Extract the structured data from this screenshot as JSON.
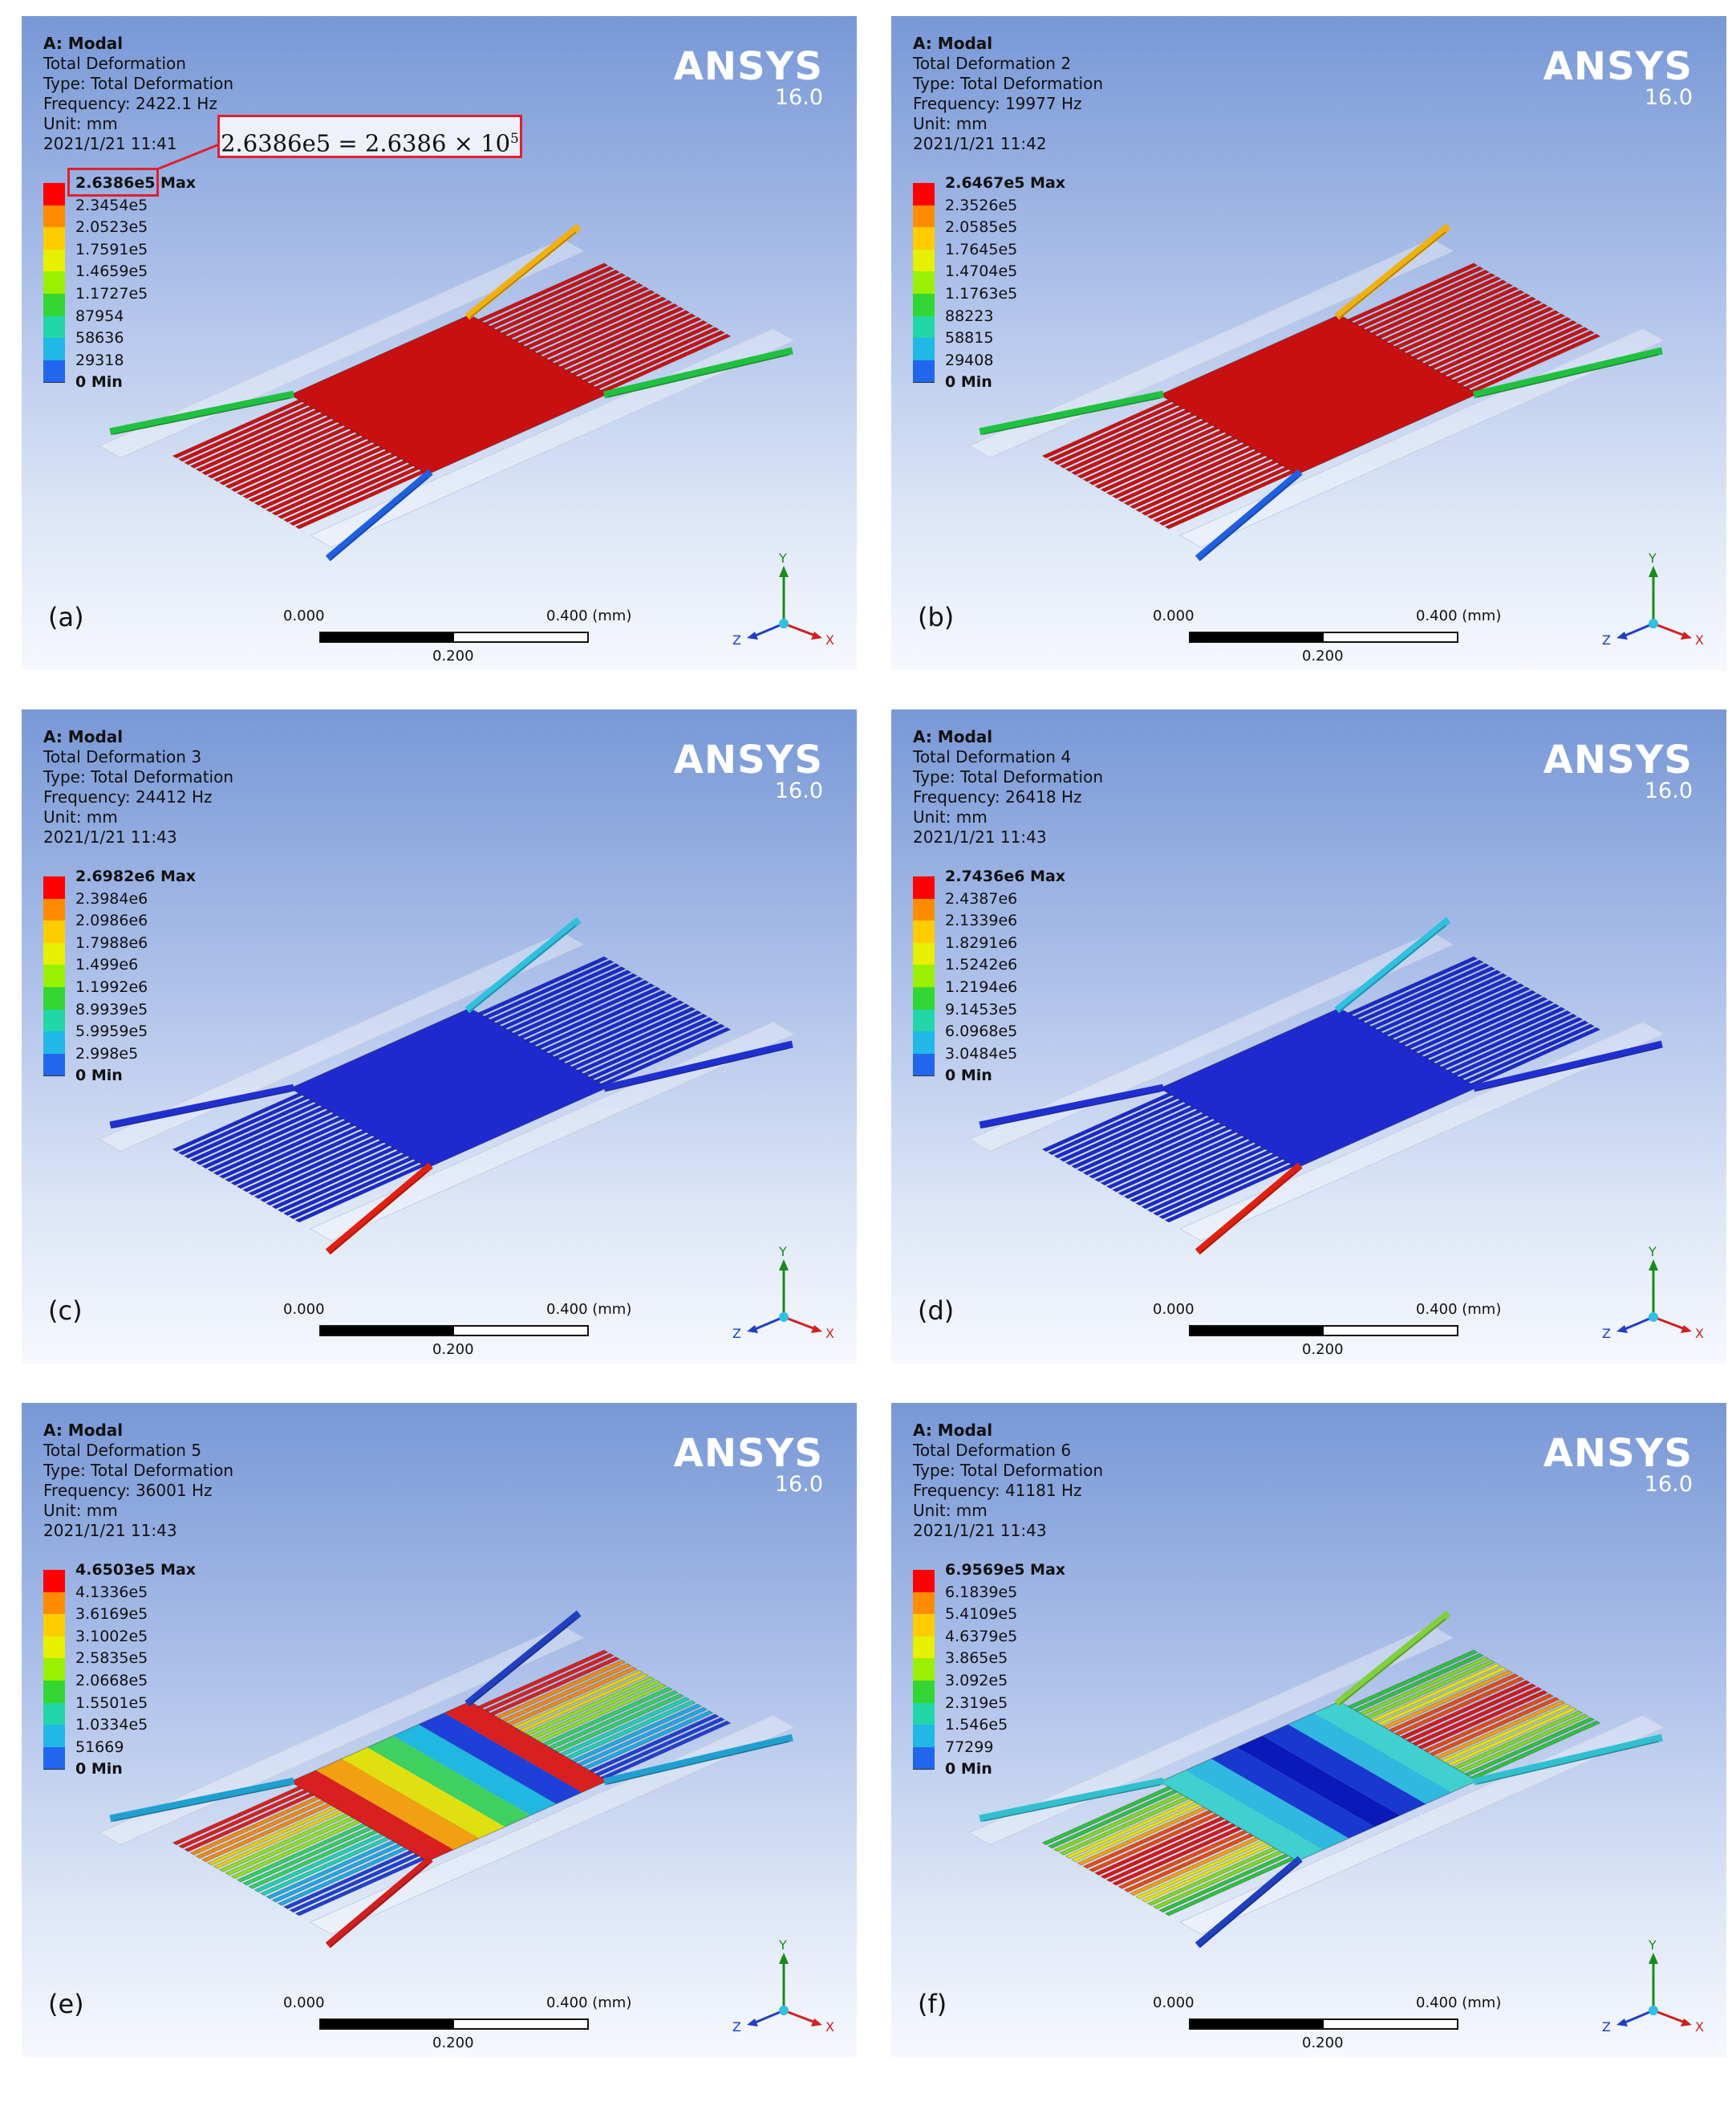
{
  "panels": [
    {
      "label": "(a)",
      "header": [
        "A: Modal",
        "Total Deformation",
        "Type: Total Deformation",
        "Frequency: 2422.1 Hz",
        "Unit: mm",
        "2021/1/21 11:41"
      ],
      "legend": [
        "2.6386e5 Max",
        "2.3454e5",
        "2.0523e5",
        "1.7591e5",
        "1.4659e5",
        "1.1727e5",
        "87954",
        "58636",
        "29318",
        "0 Min"
      ],
      "pattern": "red"
    },
    {
      "label": "(b)",
      "header": [
        "A: Modal",
        "Total Deformation 2",
        "Type: Total Deformation",
        "Frequency: 19977 Hz",
        "Unit: mm",
        "2021/1/21 11:42"
      ],
      "legend": [
        "2.6467e5 Max",
        "2.3526e5",
        "2.0585e5",
        "1.7645e5",
        "1.4704e5",
        "1.1763e5",
        "88223",
        "58815",
        "29408",
        "0 Min"
      ],
      "pattern": "red"
    },
    {
      "label": "(c)",
      "header": [
        "A: Modal",
        "Total Deformation 3",
        "Type: Total Deformation",
        "Frequency: 24412 Hz",
        "Unit: mm",
        "2021/1/21 11:43"
      ],
      "legend": [
        "2.6982e6 Max",
        "2.3984e6",
        "2.0986e6",
        "1.7988e6",
        "1.499e6",
        "1.1992e6",
        "8.9939e5",
        "5.9959e5",
        "2.998e5",
        "0 Min"
      ],
      "pattern": "blue"
    },
    {
      "label": "(d)",
      "header": [
        "A: Modal",
        "Total Deformation 4",
        "Type: Total Deformation",
        "Frequency: 26418 Hz",
        "Unit: mm",
        "2021/1/21 11:43"
      ],
      "legend": [
        "2.7436e6 Max",
        "2.4387e6",
        "2.1339e6",
        "1.8291e6",
        "1.5242e6",
        "1.2194e6",
        "9.1453e5",
        "6.0968e5",
        "3.0484e5",
        "0 Min"
      ],
      "pattern": "blue"
    },
    {
      "label": "(e)",
      "header": [
        "A: Modal",
        "Total Deformation 5",
        "Type: Total Deformation",
        "Frequency: 36001 Hz",
        "Unit: mm",
        "2021/1/21 11:43"
      ],
      "legend": [
        "4.6503e5 Max",
        "4.1336e5",
        "3.6169e5",
        "3.1002e5",
        "2.5835e5",
        "2.0668e5",
        "1.5501e5",
        "1.0334e5",
        "51669",
        "0 Min"
      ],
      "pattern": "rainbow"
    },
    {
      "label": "(f)",
      "header": [
        "A: Modal",
        "Total Deformation 6",
        "Type: Total Deformation",
        "Frequency: 41181 Hz",
        "Unit: mm",
        "2021/1/21 11:43"
      ],
      "legend": [
        "6.9569e5 Max",
        "6.1839e5",
        "5.4109e5",
        "4.6379e5",
        "3.865e5",
        "3.092e5",
        "2.319e5",
        "1.546e5",
        "77299",
        "0 Min"
      ],
      "pattern": "bands"
    }
  ],
  "brand": {
    "logo": "ANSYS",
    "version": "16.0"
  },
  "scale_bar": {
    "left": "0.000",
    "right": "0.400 (mm)",
    "mid": "0.200"
  },
  "triad": {
    "y": "Y",
    "x": "X",
    "z": "Z"
  },
  "callout": {
    "text": "2.6386e5 = 2.6386 × 10",
    "exponent": "5"
  },
  "colors": {
    "legend_bins": [
      "#ff0000",
      "#ff8c00",
      "#ffcc00",
      "#e6f000",
      "#99f000",
      "#33d633",
      "#22d6a8",
      "#22b8e6",
      "#2266ee",
      "#0000cc"
    ],
    "callout_border": "#e02030"
  }
}
